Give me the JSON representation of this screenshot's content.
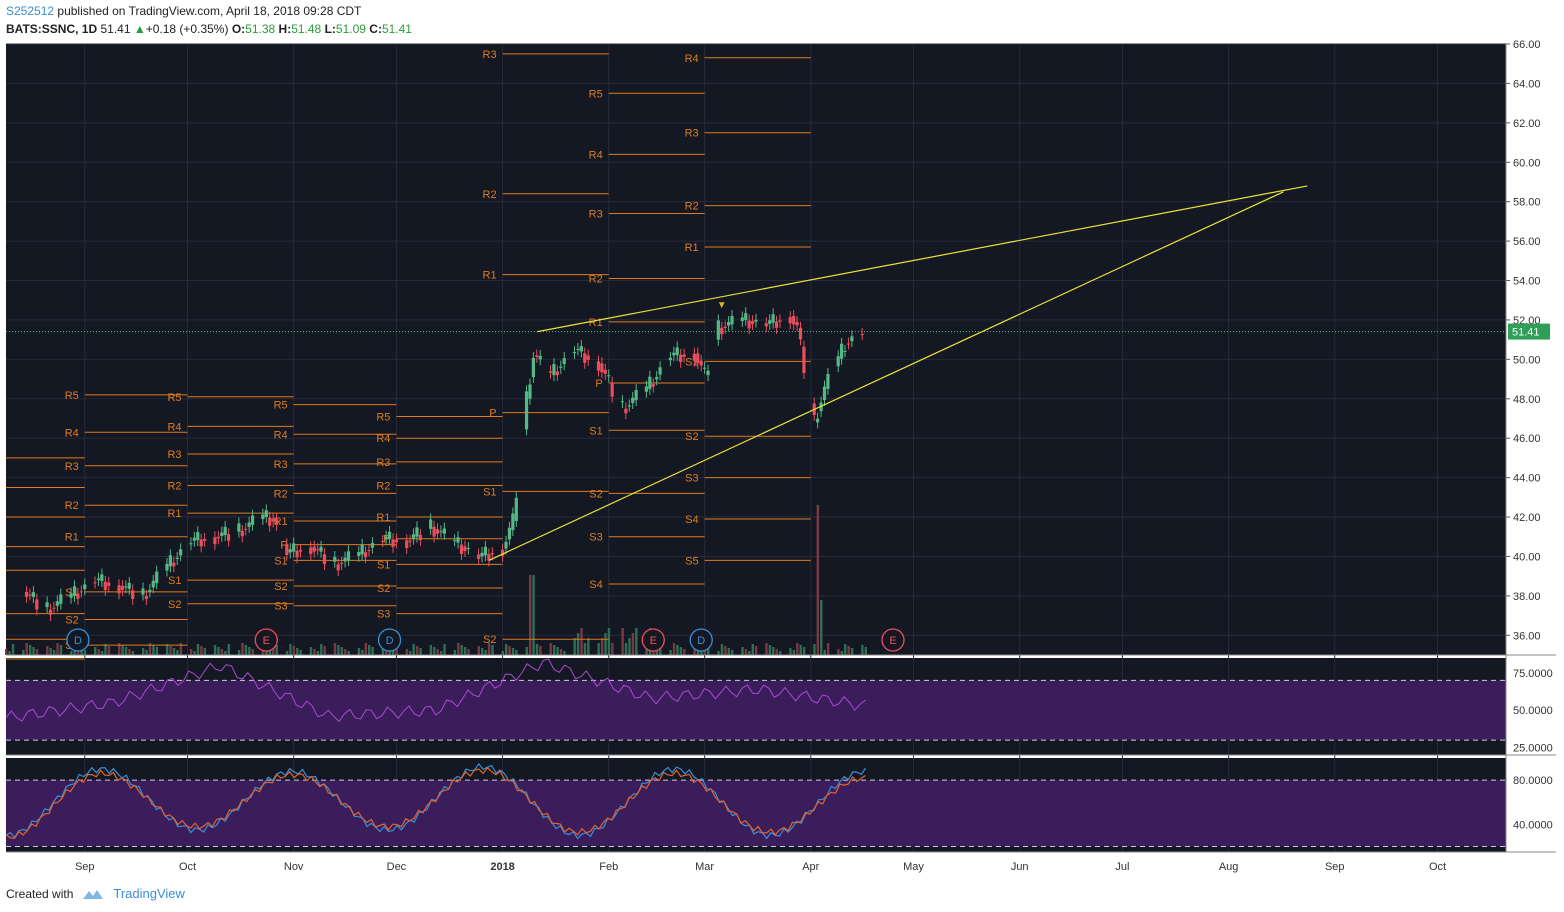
{
  "header": {
    "user": "S252512",
    "published": "published on TradingView.com, April 18, 2018 09:28 CDT",
    "symbol": "BATS:SSNC, 1D",
    "last": "51.41",
    "change": "+0.18 (+0.35%)",
    "o_label": "O:",
    "o": "51.38",
    "h_label": "H:",
    "h": "51.48",
    "l_label": "L:",
    "l": "51.09",
    "c_label": "C:",
    "c": "51.41"
  },
  "footer": {
    "created": "Created with",
    "brand": "TradingView"
  },
  "colors": {
    "bg": "#141823",
    "up": "#53b987",
    "down": "#eb4d5c",
    "pivot": "#e07b1f",
    "trend": "#e8e43a",
    "rsi": "#a94bd0",
    "stoch_k": "#3a8fd6",
    "stoch_d": "#e0642e",
    "band": "#3a1d5a",
    "last_tag": "#2f9e57"
  },
  "chart_data": [
    {
      "type": "candlestick",
      "symbol": "BATS:SSNC",
      "interval": "1D",
      "ylim": [
        35,
        66
      ],
      "y_ticks": [
        "66.00",
        "64.00",
        "62.00",
        "60.00",
        "58.00",
        "56.00",
        "54.00",
        "52.00",
        "50.00",
        "48.00",
        "46.00",
        "44.00",
        "42.00",
        "40.00",
        "38.00",
        "36.00"
      ],
      "x_ticks": [
        "Sep",
        "Oct",
        "Nov",
        "Dec",
        "2018",
        "Feb",
        "Mar",
        "Apr",
        "May",
        "Jun",
        "Jul",
        "Aug",
        "Sep",
        "Oct"
      ],
      "last_price_label": "51.41",
      "last_price": 51.41,
      "close_path": [
        [
          "2017-08-15",
          38.2
        ],
        [
          "2017-08-22",
          37.3
        ],
        [
          "2017-08-29",
          38.0
        ],
        [
          "2017-09-05",
          38.8
        ],
        [
          "2017-09-12",
          38.5
        ],
        [
          "2017-09-19",
          38.0
        ],
        [
          "2017-09-26",
          39.5
        ],
        [
          "2017-10-03",
          40.8
        ],
        [
          "2017-10-10",
          41.0
        ],
        [
          "2017-10-17",
          41.3
        ],
        [
          "2017-10-24",
          42.0
        ],
        [
          "2017-10-27",
          41.9
        ],
        [
          "2017-10-31",
          40.2
        ],
        [
          "2017-11-07",
          40.5
        ],
        [
          "2017-11-14",
          39.6
        ],
        [
          "2017-11-21",
          40.1
        ],
        [
          "2017-11-28",
          40.9
        ],
        [
          "2017-12-05",
          40.8
        ],
        [
          "2017-12-12",
          41.5
        ],
        [
          "2017-12-19",
          40.7
        ],
        [
          "2017-12-26",
          40.0
        ],
        [
          "2018-01-02",
          40.4
        ],
        [
          "2018-01-05",
          41.8
        ],
        [
          "2018-01-09",
          48.0
        ],
        [
          "2018-01-11",
          50.2
        ],
        [
          "2018-01-16",
          49.2
        ],
        [
          "2018-01-23",
          50.5
        ],
        [
          "2018-01-30",
          49.8
        ],
        [
          "2018-02-06",
          47.5
        ],
        [
          "2018-02-13",
          48.5
        ],
        [
          "2018-02-20",
          50.2
        ],
        [
          "2018-02-27",
          50.3
        ],
        [
          "2018-03-02",
          49.2
        ],
        [
          "2018-03-06",
          51.6
        ],
        [
          "2018-03-13",
          52.0
        ],
        [
          "2018-03-20",
          51.8
        ],
        [
          "2018-03-27",
          52.2
        ],
        [
          "2018-03-29",
          51.6
        ],
        [
          "2018-04-03",
          46.8
        ],
        [
          "2018-04-06",
          48.5
        ],
        [
          "2018-04-12",
          50.8
        ],
        [
          "2018-04-17",
          51.41
        ]
      ],
      "pivot_levels": [
        {
          "period": "2017-08",
          "labels": [
            "R5",
            "R4",
            "R3",
            "R2",
            "R1",
            "S1",
            "S2",
            "S3"
          ],
          "values": [
            45.0,
            43.5,
            42.0,
            40.5,
            39.3,
            37.1,
            35.8,
            34.8
          ]
        },
        {
          "period": "2017-09",
          "labels": [
            "R5",
            "R4",
            "R3",
            "R2",
            "R1",
            "S1",
            "S2",
            "S3"
          ],
          "values": [
            48.2,
            46.3,
            44.6,
            42.6,
            41.0,
            38.2,
            36.8,
            35.5
          ]
        },
        {
          "period": "2017-10",
          "labels": [
            "R5",
            "R4",
            "R3",
            "R2",
            "R1",
            "S1",
            "S2"
          ],
          "values": [
            48.1,
            46.6,
            45.2,
            43.6,
            42.2,
            38.8,
            37.6
          ]
        },
        {
          "period": "2017-11",
          "labels": [
            "R5",
            "R4",
            "R3",
            "R2",
            "R1",
            "P",
            "S1",
            "S2",
            "S3"
          ],
          "values": [
            47.7,
            46.2,
            44.7,
            43.2,
            41.8,
            40.6,
            39.8,
            38.5,
            37.5
          ]
        },
        {
          "period": "2017-12",
          "labels": [
            "R5",
            "R4",
            "R3",
            "R2",
            "R1",
            "P",
            "S1",
            "S2",
            "S3"
          ],
          "values": [
            47.1,
            46.0,
            44.8,
            43.6,
            42.0,
            40.9,
            39.6,
            38.4,
            37.1
          ]
        },
        {
          "period": "2018-01",
          "labels": [
            "R3",
            "R2",
            "R1",
            "P",
            "S1",
            "S2"
          ],
          "values": [
            65.5,
            58.4,
            54.3,
            47.3,
            43.3,
            35.8
          ]
        },
        {
          "period": "2018-02",
          "labels": [
            "R5",
            "R4",
            "R3",
            "R2",
            "R1",
            "P",
            "S1",
            "S2",
            "S3",
            "S4"
          ],
          "values": [
            63.5,
            60.4,
            57.4,
            54.1,
            51.9,
            48.8,
            46.4,
            43.2,
            41.0,
            38.6
          ]
        },
        {
          "period": "2018-03",
          "labels": [
            "R4",
            "R3",
            "R2",
            "R1",
            "S1",
            "S2",
            "S3",
            "S4",
            "S5"
          ],
          "values": [
            65.3,
            61.5,
            57.8,
            55.7,
            49.9,
            46.1,
            44.0,
            41.9,
            39.8
          ]
        }
      ],
      "trendlines": [
        {
          "from": [
            "2018-01-11",
            51.4
          ],
          "to": [
            "2018-08-24",
            58.8
          ]
        },
        {
          "from": [
            "2017-12-28",
            39.8
          ],
          "to": [
            "2018-08-17",
            58.5
          ]
        }
      ],
      "events": [
        {
          "date": "2017-08-30",
          "label": "D"
        },
        {
          "date": "2017-10-24",
          "label": "E"
        },
        {
          "date": "2017-11-29",
          "label": "D"
        },
        {
          "date": "2018-02-14",
          "label": "E"
        },
        {
          "date": "2018-02-28",
          "label": "D"
        },
        {
          "date": "2018-04-25",
          "label": "E"
        }
      ]
    },
    {
      "type": "line",
      "name": "RSI",
      "ylim": [
        20,
        85
      ],
      "y_ticks": [
        "75.0000",
        "50.0000",
        "25.0000"
      ],
      "bands": [
        30,
        70
      ],
      "x": [
        "2017-08",
        "2017-09",
        "2017-10",
        "2017-11",
        "2017-12",
        "2018-01",
        "2018-02",
        "2018-03",
        "2018-04"
      ],
      "values": [
        45,
        55,
        80,
        46,
        50,
        82,
        58,
        64,
        53
      ]
    },
    {
      "type": "line",
      "name": "Stoch RSI",
      "ylim": [
        15,
        100
      ],
      "y_ticks": [
        "80.0000",
        "40.0000"
      ],
      "bands": [
        20,
        80
      ],
      "series": [
        {
          "values": [
            30,
            90,
            35,
            88,
            35,
            92,
            30,
            90,
            30,
            88
          ]
        },
        {
          "values": [
            28,
            86,
            38,
            85,
            38,
            89,
            33,
            86,
            33,
            82
          ]
        }
      ]
    }
  ]
}
